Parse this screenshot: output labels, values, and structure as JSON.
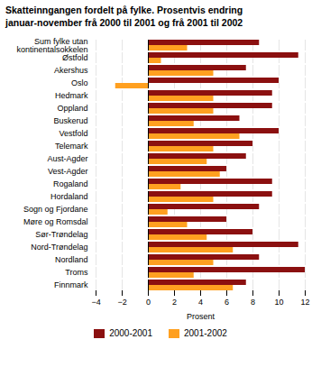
{
  "chart_data": {
    "type": "bar",
    "orientation": "horizontal",
    "title": "Skatteinngangen fordelt på fylke. Prosentvis endring",
    "subtitle": "januar-november frå 2000 til 2001 og frå 2001 til 2002",
    "categories": [
      "Sum fylke utan\nkontinentalsokkelen",
      "Østfold",
      "Akershus",
      "Oslo",
      "Hedmark",
      "Oppland",
      "Buskerud",
      "Vestfold",
      "Telemark",
      "Aust-Agder",
      "Vest-Agder",
      "Rogaland",
      "Hordaland",
      "Sogn og Fjordane",
      "Møre og Romsdal",
      "Sør-Trøndelag",
      "Nord-Trøndelag",
      "Nordland",
      "Troms",
      "Finnmark"
    ],
    "series": [
      {
        "name": "2000-2001",
        "color": "#8B1010",
        "values": [
          8.5,
          11.5,
          7.5,
          10.0,
          9.5,
          9.5,
          7.0,
          10.0,
          8.0,
          7.5,
          6.0,
          9.5,
          9.5,
          8.5,
          6.0,
          8.0,
          11.5,
          8.5,
          12.0,
          7.5
        ]
      },
      {
        "name": "2001-2002",
        "color": "#FFA020",
        "values": [
          3.0,
          1.0,
          5.0,
          -2.5,
          5.0,
          5.0,
          3.5,
          7.0,
          5.0,
          4.5,
          5.5,
          2.5,
          5.0,
          1.5,
          3.0,
          4.5,
          6.5,
          5.0,
          3.5,
          6.5
        ]
      }
    ],
    "xlabel": "Prosent",
    "xlim": [
      -4,
      12
    ],
    "xticks": [
      -4,
      -2,
      0,
      2,
      4,
      6,
      8,
      10,
      12
    ],
    "grid": true,
    "legend": "bottom"
  }
}
